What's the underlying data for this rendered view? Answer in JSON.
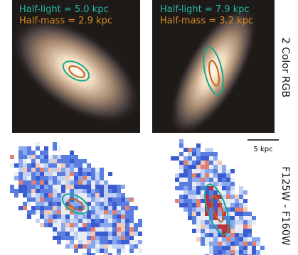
{
  "panels": {
    "left_top": {
      "half_light": "Half-light = 5.0 kpc",
      "half_mass": "Half-mass = 2.9 kpc"
    },
    "right_top": {
      "half_light": "Half-light = 7.9 kpc",
      "half_mass": "Half-mass = 3.2 kpc"
    }
  },
  "row_labels": [
    "2 Color RGB",
    "F125W - F160W"
  ],
  "scale_bar": "5 kpc"
}
